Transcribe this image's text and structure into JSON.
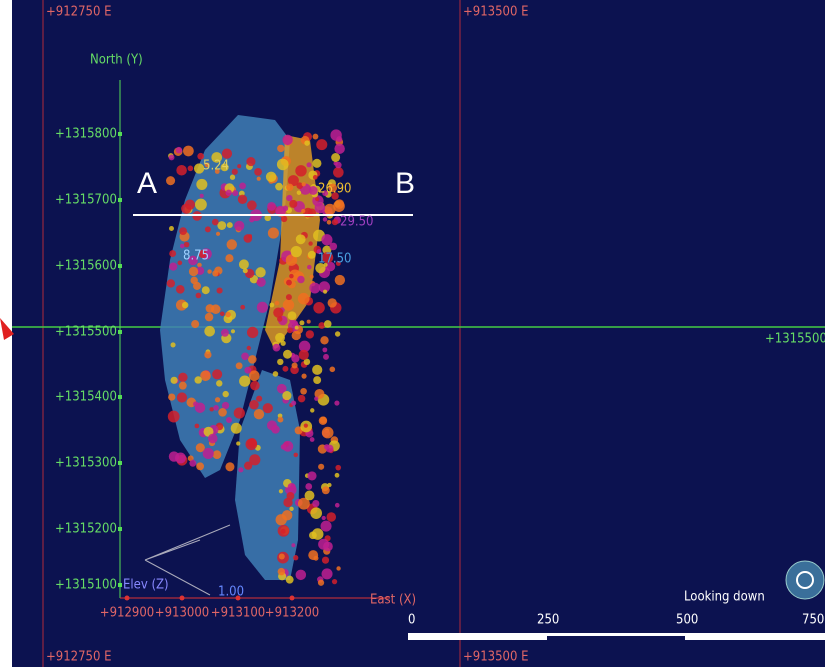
{
  "easting_labels": [
    "+912750 E",
    "+913500 E"
  ],
  "northing_labels": [
    "+1315800",
    "+1315700",
    "+1315600",
    "+1315500",
    "+1315400",
    "+1315300",
    "+1315200",
    "+1315100"
  ],
  "crosshair_label": "+1315500",
  "axes": {
    "north": "North (Y)",
    "east": "East (X)",
    "elev": "Elev (Z)",
    "east_ticks": [
      "+912900",
      "+913000",
      "+913100",
      "+913200"
    ]
  },
  "section": {
    "start": "A",
    "end": "B"
  },
  "sample_labels": [
    "8.75",
    "1.00",
    "5.24",
    "26.90",
    "29.50",
    "17.50"
  ],
  "scale_bar": {
    "labels": [
      "0",
      "250",
      "500",
      "750"
    ],
    "view": "Looking down"
  }
}
